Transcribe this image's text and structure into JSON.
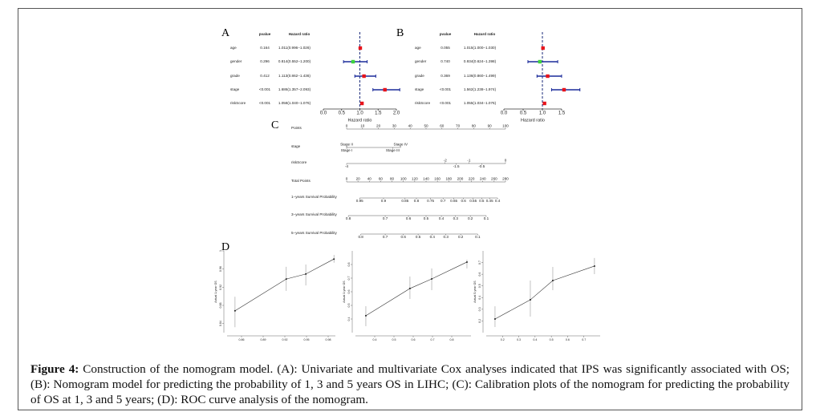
{
  "forest": [
    {
      "label": "A",
      "headers": [
        "pvalue",
        "Hazard ratio"
      ],
      "xlabel": "Hazard ratio",
      "xlim": [
        0,
        2
      ],
      "xticks": [
        {
          "value": 0,
          "label": "0.0"
        },
        {
          "value": 0.5,
          "label": "0.5"
        },
        {
          "value": 1,
          "label": "1.0"
        },
        {
          "value": 1.5,
          "label": "1.5"
        },
        {
          "value": 2,
          "label": "2.0"
        }
      ],
      "rows": [
        {
          "name": "age",
          "pvalue": "0.164",
          "hr_text": "1.011(0.996−1.026)",
          "hr": 1.011,
          "lower": 0.996,
          "upper": 1.026,
          "color": "#e8141b"
        },
        {
          "name": "gender",
          "pvalue": "0.296",
          "hr_text": "0.814(0.552−1.200)",
          "hr": 0.814,
          "lower": 0.552,
          "upper": 1.2,
          "color": "#3dd43d"
        },
        {
          "name": "grade",
          "pvalue": "0.412",
          "hr_text": "1.113(0.862−1.436)",
          "hr": 1.113,
          "lower": 0.862,
          "upper": 1.436,
          "color": "#e8141b"
        },
        {
          "name": "stage",
          "pvalue": "<0.001",
          "hr_text": "1.686(1.357−2.093)",
          "hr": 1.686,
          "lower": 1.357,
          "upper": 2.093,
          "color": "#e8141b"
        },
        {
          "name": "riskScore",
          "pvalue": "<0.001",
          "hr_text": "1.058(1.040−1.076)",
          "hr": 1.058,
          "lower": 1.04,
          "upper": 1.076,
          "color": "#e8141b"
        }
      ]
    },
    {
      "label": "B",
      "headers": [
        "pvalue",
        "Hazard ratio"
      ],
      "xlabel": "Hazard ratio",
      "xlim": [
        0,
        1.5
      ],
      "xticks": [
        {
          "value": 0,
          "label": "0.0"
        },
        {
          "value": 0.5,
          "label": "0.5"
        },
        {
          "value": 1,
          "label": "1.0"
        },
        {
          "value": 1.5,
          "label": "1.5"
        }
      ],
      "rows": [
        {
          "name": "age",
          "pvalue": "0.055",
          "hr_text": "1.015(1.000−1.030)",
          "hr": 1.015,
          "lower": 1.0,
          "upper": 1.03,
          "color": "#e8141b"
        },
        {
          "name": "gender",
          "pvalue": "0.740",
          "hr_text": "0.934(0.624−1.398)",
          "hr": 0.934,
          "lower": 0.624,
          "upper": 1.398,
          "color": "#3dd43d"
        },
        {
          "name": "grade",
          "pvalue": "0.369",
          "hr_text": "1.136(0.860−1.499)",
          "hr": 1.136,
          "lower": 0.86,
          "upper": 1.499,
          "color": "#e8141b"
        },
        {
          "name": "stage",
          "pvalue": "<0.001",
          "hr_text": "1.562(1.238−1.974)",
          "hr": 1.562,
          "lower": 1.238,
          "upper": 1.974,
          "color": "#e8141b"
        },
        {
          "name": "riskScore",
          "pvalue": "<0.001",
          "hr_text": "1.055(1.034−1.076)",
          "hr": 1.055,
          "lower": 1.034,
          "upper": 1.076,
          "color": "#e8141b"
        }
      ]
    }
  ],
  "nomogram": {
    "label": "C",
    "rows": [
      {
        "name": "Points",
        "xlim": [
          0,
          100
        ],
        "ticks_above": [
          0,
          10,
          20,
          30,
          40,
          50,
          60,
          70,
          80,
          90,
          100
        ],
        "ticks_below": []
      },
      {
        "name": "stage",
        "xlim": [
          0,
          100
        ],
        "ticks_above": [
          {
            "value": 0,
            "label": "Stage II"
          },
          {
            "value": 34,
            "label": "Stage IV"
          }
        ],
        "ticks_below": [
          {
            "value": 0,
            "label": "Stage I"
          },
          {
            "value": 29,
            "label": "Stage III"
          }
        ]
      },
      {
        "name": "riskScore",
        "xlim": [
          0,
          100
        ],
        "ticks_above": [
          {
            "value": 62,
            "label": "-2"
          },
          {
            "value": 77,
            "label": "-1"
          },
          {
            "value": 100,
            "label": "0"
          }
        ],
        "ticks_below": [
          {
            "value": 0,
            "label": "-4"
          },
          {
            "value": 69,
            "label": "-1.5"
          },
          {
            "value": 85,
            "label": "-0.5"
          }
        ]
      },
      {
        "name": "Total Points",
        "xlim": [
          0,
          280
        ],
        "ticks_above": [
          0,
          20,
          40,
          60,
          80,
          100,
          120,
          140,
          160,
          180,
          200,
          220,
          240,
          260,
          280
        ],
        "ticks_below": []
      },
      {
        "name": "1−years Survival Probability",
        "xlim": [
          0,
          280
        ],
        "ticks_above": [],
        "ticks_below": [
          {
            "value": 23,
            "label": "0.95"
          },
          {
            "value": 65,
            "label": "0.9"
          },
          {
            "value": 103,
            "label": "0.85"
          },
          {
            "value": 123,
            "label": "0.8"
          },
          {
            "value": 148,
            "label": "0.75"
          },
          {
            "value": 170,
            "label": "0.7"
          },
          {
            "value": 189,
            "label": "0.65"
          },
          {
            "value": 206,
            "label": "0.6"
          },
          {
            "value": 223,
            "label": "0.55"
          },
          {
            "value": 238,
            "label": "0.5"
          },
          {
            "value": 252,
            "label": "0.45"
          },
          {
            "value": 266,
            "label": "0.4"
          }
        ]
      },
      {
        "name": "3−years Survival Probability",
        "xlim": [
          0,
          280
        ],
        "ticks_above": [],
        "ticks_below": [
          {
            "value": 3,
            "label": "0.8"
          },
          {
            "value": 68,
            "label": "0.7"
          },
          {
            "value": 109,
            "label": "0.6"
          },
          {
            "value": 140,
            "label": "0.5"
          },
          {
            "value": 167,
            "label": "0.4"
          },
          {
            "value": 192,
            "label": "0.3"
          },
          {
            "value": 218,
            "label": "0.2"
          },
          {
            "value": 246,
            "label": "0.1"
          }
        ]
      },
      {
        "name": "5−years Survival Probability",
        "xlim": [
          0,
          280
        ],
        "ticks_above": [],
        "ticks_below": [
          {
            "value": 25,
            "label": "0.8"
          },
          {
            "value": 68,
            "label": "0.7"
          },
          {
            "value": 100,
            "label": "0.6"
          },
          {
            "value": 126,
            "label": "0.5"
          },
          {
            "value": 151,
            "label": "0.4"
          },
          {
            "value": 175,
            "label": "0.3"
          },
          {
            "value": 201,
            "label": "0.2"
          },
          {
            "value": 231,
            "label": "0.1"
          }
        ]
      }
    ]
  },
  "calibration": {
    "label": "D",
    "plots": [
      {
        "ylabel": "Actual 1-year OS",
        "xlim": [
          0.84,
          0.99
        ],
        "ylim": [
          0.82,
          1.0
        ],
        "xticks": [
          0.86,
          0.89,
          0.92,
          0.95,
          0.98
        ],
        "yticks": [
          0.84,
          0.88,
          0.92,
          0.96,
          1.0
        ],
        "x": [
          0.851,
          0.922,
          0.949,
          0.988
        ],
        "y": [
          0.868,
          0.938,
          0.949,
          0.982
        ],
        "lower": [
          0.832,
          0.912,
          0.924,
          0.974
        ],
        "upper": [
          0.899,
          0.965,
          0.97,
          0.991
        ]
      },
      {
        "ylabel": "Actual 3-year OS",
        "xlim": [
          0.3,
          0.9
        ],
        "ylim": [
          0.3,
          0.9
        ],
        "xticks": [
          0.4,
          0.5,
          0.6,
          0.7,
          0.8
        ],
        "yticks": [
          0.4,
          0.5,
          0.6,
          0.7,
          0.8
        ],
        "x": [
          0.354,
          0.583,
          0.696,
          0.879
        ],
        "y": [
          0.424,
          0.624,
          0.694,
          0.818
        ],
        "lower": [
          0.347,
          0.547,
          0.612,
          0.771
        ],
        "upper": [
          0.494,
          0.712,
          0.771,
          0.835
        ]
      },
      {
        "ylabel": "Actual 5-year OS",
        "xlim": [
          0.1,
          0.8
        ],
        "ylim": [
          0.1,
          0.8
        ],
        "xticks": [
          0.2,
          0.3,
          0.4,
          0.5,
          0.6,
          0.7
        ],
        "yticks": [
          0.2,
          0.3,
          0.4,
          0.5,
          0.6,
          0.7
        ],
        "x": [
          0.154,
          0.371,
          0.509,
          0.765
        ],
        "y": [
          0.217,
          0.381,
          0.546,
          0.67
        ],
        "lower": [
          0.148,
          0.237,
          0.464,
          0.601
        ],
        "upper": [
          0.326,
          0.546,
          0.663,
          0.739
        ]
      }
    ]
  },
  "caption": {
    "lead": "Figure 4:",
    "text": "Construction of the nomogram model. (A): Univariate and multivariate Cox analyses indicated that IPS was significantly associated with OS; (B): Nomogram model for predicting the probability of 1, 3 and 5 years OS in LIHC; (C): Calibration plots of the nomogram for predicting the probability of OS at 1, 3 and 5 years; (D): ROC curve analysis of the nomogram."
  }
}
